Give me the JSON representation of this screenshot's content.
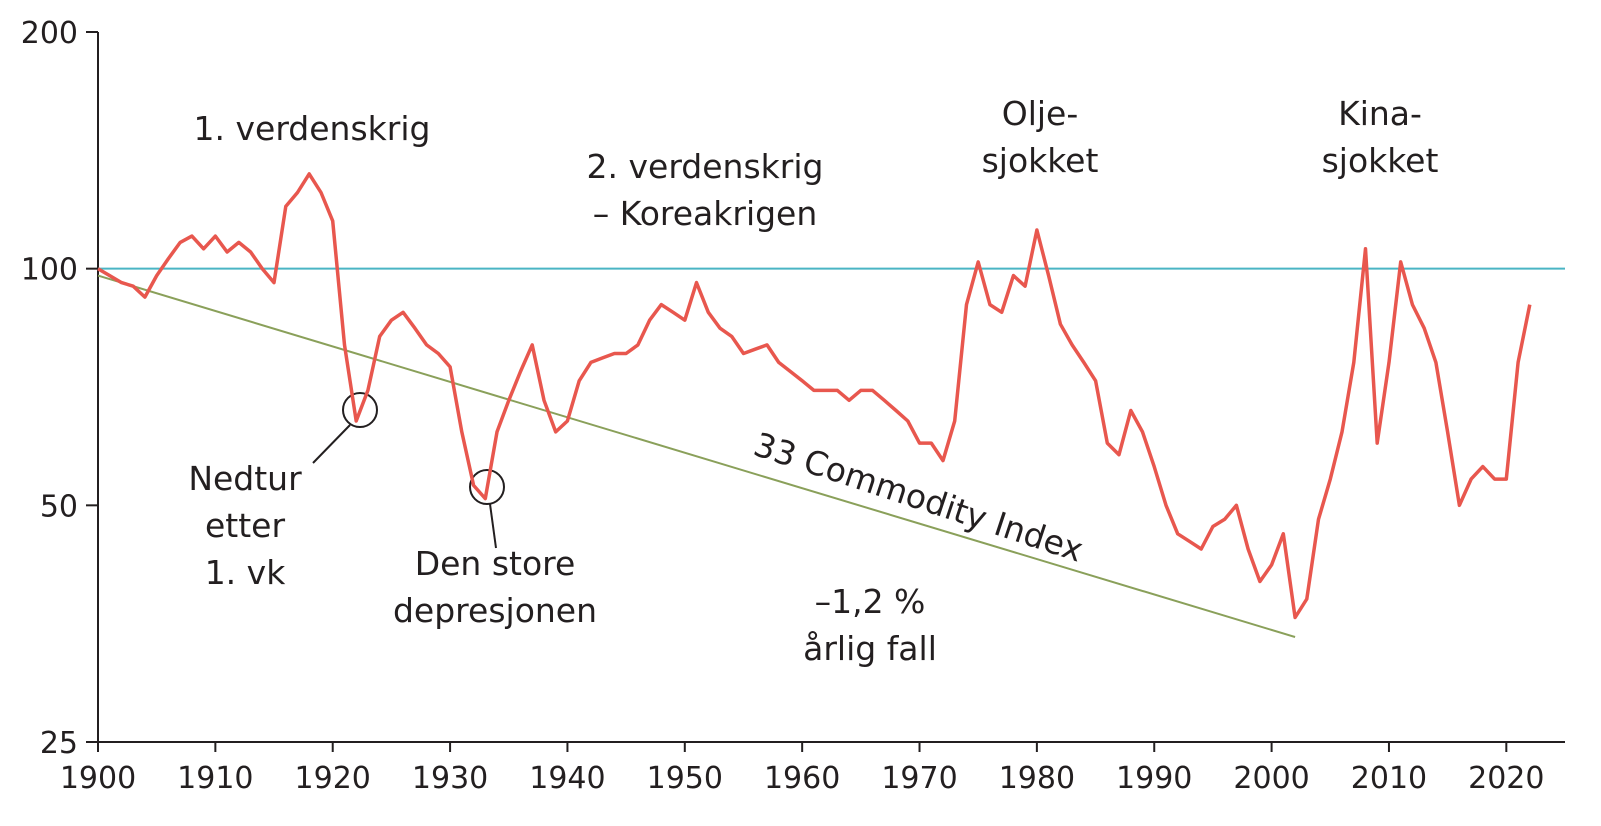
{
  "chart_data": {
    "type": "line",
    "log_scale": true,
    "color": "#e8574e",
    "x": [
      1900,
      1901,
      1902,
      1903,
      1904,
      1905,
      1906,
      1907,
      1908,
      1909,
      1910,
      1911,
      1912,
      1913,
      1914,
      1915,
      1916,
      1917,
      1918,
      1919,
      1920,
      1921,
      1922,
      1923,
      1924,
      1925,
      1926,
      1927,
      1928,
      1929,
      1930,
      1931,
      1932,
      1933,
      1934,
      1935,
      1936,
      1937,
      1938,
      1939,
      1940,
      1941,
      1942,
      1943,
      1944,
      1945,
      1946,
      1947,
      1948,
      1949,
      1950,
      1951,
      1952,
      1953,
      1954,
      1955,
      1956,
      1957,
      1958,
      1959,
      1960,
      1961,
      1962,
      1963,
      1964,
      1965,
      1966,
      1967,
      1968,
      1969,
      1970,
      1971,
      1972,
      1973,
      1974,
      1975,
      1976,
      1977,
      1978,
      1979,
      1980,
      1981,
      1982,
      1983,
      1984,
      1985,
      1986,
      1987,
      1988,
      1989,
      1990,
      1991,
      1992,
      1993,
      1994,
      1995,
      1996,
      1997,
      1998,
      1999,
      2000,
      2001,
      2002,
      2003,
      2004,
      2005,
      2006,
      2007,
      2008,
      2009,
      2010,
      2011,
      2012,
      2013,
      2014,
      2015,
      2016,
      2017,
      2018,
      2019,
      2020,
      2021,
      2022
    ],
    "values": [
      100,
      98,
      96,
      95,
      92,
      98,
      103,
      108,
      110,
      106,
      110,
      105,
      108,
      105,
      100,
      96,
      120,
      125,
      132,
      125,
      115,
      80,
      64,
      70,
      82,
      86,
      88,
      84,
      80,
      78,
      75,
      62,
      53,
      51,
      62,
      68,
      74,
      80,
      68,
      62,
      64,
      72,
      76,
      77,
      78,
      78,
      80,
      86,
      90,
      88,
      86,
      96,
      88,
      84,
      82,
      78,
      79,
      80,
      76,
      74,
      72,
      70,
      70,
      70,
      68,
      70,
      70,
      68,
      66,
      64,
      60,
      60,
      57,
      64,
      90,
      102,
      90,
      88,
      98,
      95,
      112,
      98,
      85,
      80,
      76,
      72,
      60,
      58,
      66,
      62,
      56,
      50,
      46,
      45,
      44,
      47,
      48,
      50,
      44,
      40,
      42,
      46,
      36,
      38,
      48,
      54,
      62,
      76,
      106,
      60,
      76,
      102,
      90,
      84,
      76,
      62,
      50,
      54,
      56,
      54,
      54,
      76,
      90
    ],
    "xlim": [
      1900,
      2025
    ],
    "xticks": [
      1900,
      1910,
      1920,
      1930,
      1940,
      1950,
      1960,
      1970,
      1980,
      1990,
      2000,
      2010,
      2020
    ],
    "ylim": [
      25,
      200
    ],
    "yticks": [
      25,
      50,
      100,
      200
    ],
    "reference_line": {
      "value": 100,
      "color": "#4ab5c4"
    },
    "trend": {
      "x": [
        1900,
        2002
      ],
      "values": [
        98,
        34
      ],
      "color": "#8aa05a",
      "label": "33 Commodity Index"
    },
    "annotations": [
      {
        "lines": [
          "1. verdenskrig"
        ]
      },
      {
        "lines": [
          "2. verdenskrig",
          "– Koreakrigen"
        ]
      },
      {
        "lines": [
          "Olje-",
          "sjokket"
        ]
      },
      {
        "lines": [
          "Kina-",
          "sjokket"
        ]
      },
      {
        "lines": [
          "Nedtur",
          "etter",
          "1. vk"
        ]
      },
      {
        "lines": [
          "Den store",
          "depresjonen"
        ]
      },
      {
        "lines": [
          "–1,2 %",
          "årlig fall"
        ]
      }
    ]
  }
}
